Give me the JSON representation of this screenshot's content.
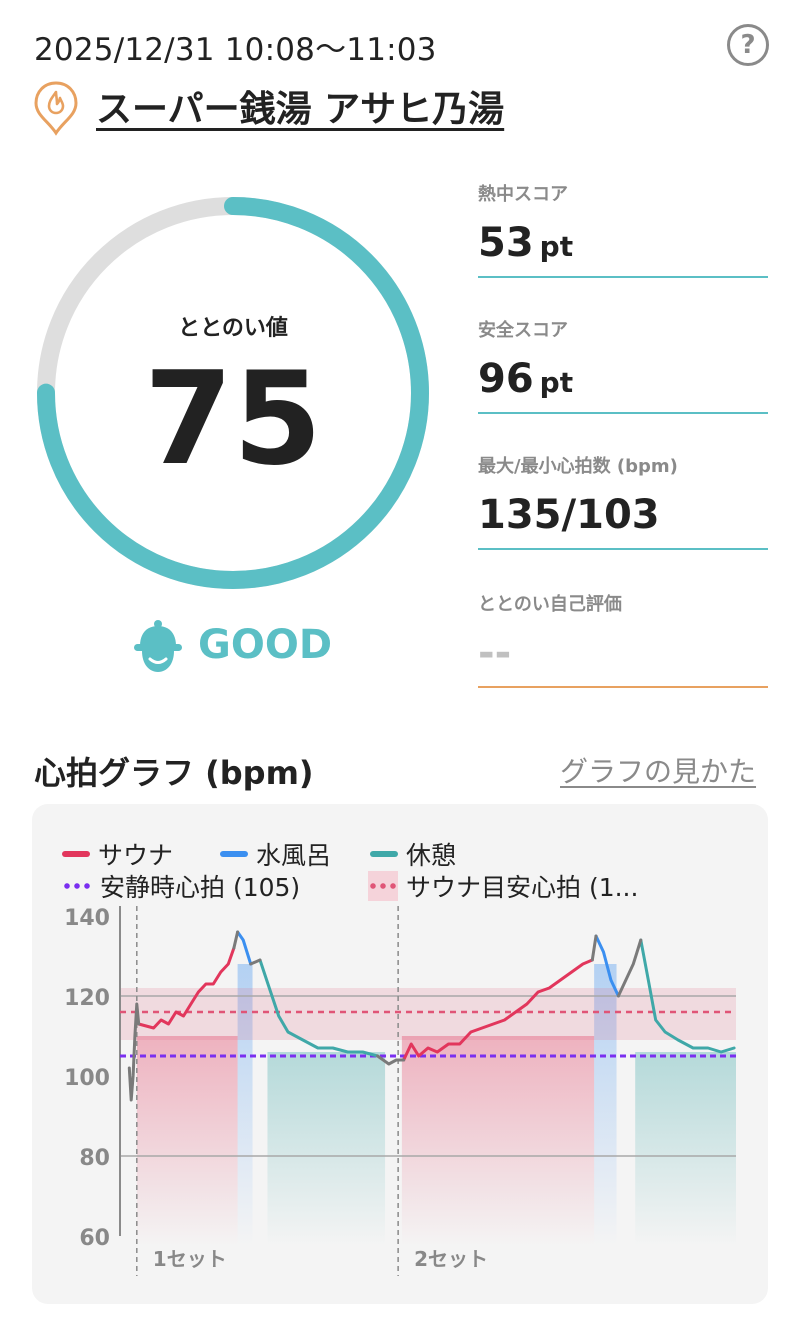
{
  "header": {
    "datetime": "2025/12/31 10:08～11:03",
    "help_glyph": "?",
    "facility_name": "スーパー銭湯 アサヒ乃湯",
    "facility_icon": "onsen-pin-icon"
  },
  "score": {
    "label": "ととのい値",
    "value": "75",
    "fraction": 0.75,
    "rating": "GOOD",
    "rating_icon": "sauna-hat-face-icon"
  },
  "metrics": [
    {
      "label": "熱中スコア",
      "value": "53",
      "unit": "pt"
    },
    {
      "label": "安全スコア",
      "value": "96",
      "unit": "pt"
    },
    {
      "label": "最大/最小心拍数 (bpm)",
      "value": "135/103",
      "unit": ""
    },
    {
      "label": "ととのい自己評価",
      "value": "--",
      "unit": ""
    }
  ],
  "graph": {
    "title": "心拍グラフ (bpm)",
    "howto_link": "グラフの見かた",
    "legend": {
      "sauna": "サウナ",
      "cold_bath": "水風呂",
      "rest": "休憩",
      "resting_hr": "安静時心拍 (105)",
      "sauna_target": "サウナ目安心拍 (1..."
    },
    "y_ticks": [
      "140",
      "120",
      "100",
      "80",
      "60"
    ],
    "set_labels": [
      "1セット",
      "2セット"
    ]
  },
  "colors": {
    "accent": "#5bbfc5",
    "gauge_track": "#dedede",
    "sauna": "#e2365c",
    "cold_bath": "#3b8ff0",
    "rest": "#3fa8a8",
    "resting_line": "#7a2ff0",
    "target_line": "#e05577",
    "orange": "#e8a160"
  },
  "chart_data": {
    "type": "line",
    "ylim": [
      60,
      140
    ],
    "resting_hr": 105,
    "target_hr": 116,
    "target_band": [
      109,
      122
    ],
    "series": [
      {
        "name": "サウナ",
        "color": "#e2365c",
        "segments": [
          [
            [
              0.0,
              113
            ],
            [
              0.8,
              112
            ],
            [
              1.2,
              114
            ],
            [
              1.6,
              113
            ],
            [
              2.0,
              116
            ],
            [
              2.4,
              115
            ],
            [
              2.8,
              118
            ],
            [
              3.2,
              121
            ],
            [
              3.6,
              123
            ],
            [
              4.0,
              123
            ],
            [
              4.4,
              126
            ],
            [
              4.8,
              128
            ],
            [
              5.1,
              132
            ]
          ],
          [
            [
              14.2,
              104
            ],
            [
              14.6,
              108
            ],
            [
              15.0,
              105
            ],
            [
              15.5,
              107
            ],
            [
              16.0,
              106
            ],
            [
              16.6,
              108
            ],
            [
              17.2,
              108
            ],
            [
              17.8,
              111
            ],
            [
              18.4,
              112
            ],
            [
              19.0,
              113
            ],
            [
              19.6,
              114
            ],
            [
              20.2,
              116
            ],
            [
              20.8,
              118
            ],
            [
              21.4,
              121
            ],
            [
              22.0,
              122
            ],
            [
              22.6,
              124
            ],
            [
              23.2,
              126
            ],
            [
              23.8,
              128
            ],
            [
              24.3,
              129
            ]
          ]
        ]
      },
      {
        "name": "水風呂",
        "color": "#3b8ff0",
        "segments": [
          [
            [
              5.3,
              136
            ],
            [
              5.6,
              134
            ],
            [
              6.0,
              128
            ]
          ],
          [
            [
              24.5,
              135
            ],
            [
              24.9,
              131
            ],
            [
              25.3,
              124
            ],
            [
              25.7,
              120
            ]
          ]
        ]
      },
      {
        "name": "休憩",
        "color": "#3fa8a8",
        "segments": [
          [
            [
              6.5,
              129
            ],
            [
              7.0,
              122
            ],
            [
              7.5,
              115
            ],
            [
              8.0,
              111
            ],
            [
              8.8,
              109
            ],
            [
              9.6,
              107
            ],
            [
              10.4,
              107
            ],
            [
              11.2,
              106
            ],
            [
              12.0,
              106
            ],
            [
              12.8,
              105
            ]
          ],
          [
            [
              26.9,
              134
            ],
            [
              27.3,
              124
            ],
            [
              27.7,
              114
            ],
            [
              28.2,
              111
            ],
            [
              28.9,
              109
            ],
            [
              29.7,
              107
            ],
            [
              30.5,
              107
            ],
            [
              31.2,
              106
            ],
            [
              31.9,
              107
            ]
          ]
        ]
      },
      {
        "name": "other",
        "color": "#7a7a7a",
        "segments": [
          [
            [
              -0.5,
              102
            ],
            [
              -0.4,
              94
            ],
            [
              -0.3,
              100
            ],
            [
              -0.2,
              110
            ],
            [
              -0.1,
              118
            ],
            [
              0.0,
              113
            ]
          ],
          [
            [
              5.1,
              132
            ],
            [
              5.3,
              136
            ]
          ],
          [
            [
              6.0,
              128
            ],
            [
              6.5,
              129
            ]
          ],
          [
            [
              12.8,
              105
            ],
            [
              13.4,
              103
            ],
            [
              13.8,
              104
            ],
            [
              14.2,
              104
            ]
          ],
          [
            [
              24.3,
              129
            ],
            [
              24.5,
              135
            ]
          ],
          [
            [
              25.7,
              120
            ],
            [
              26.5,
              128
            ],
            [
              26.9,
              134
            ]
          ]
        ]
      }
    ],
    "x_range": [
      -1.0,
      32.0
    ],
    "set_markers": [
      -0.1,
      13.9
    ],
    "zones": [
      {
        "type": "sauna",
        "from": -0.1,
        "to": 5.3
      },
      {
        "type": "cold",
        "from": 5.3,
        "to": 6.1
      },
      {
        "type": "rest",
        "from": 6.9,
        "to": 13.2
      },
      {
        "type": "sauna",
        "from": 14.1,
        "to": 24.4
      },
      {
        "type": "cold",
        "from": 24.4,
        "to": 25.6
      },
      {
        "type": "rest",
        "from": 26.6,
        "to": 32.0
      }
    ]
  }
}
